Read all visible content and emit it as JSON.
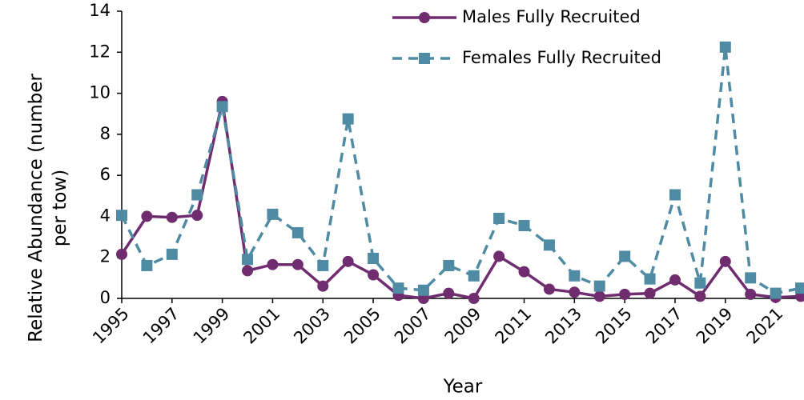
{
  "chart_data": {
    "type": "line",
    "x_label": "Year",
    "y_label": "Relative Abundance (number per tow)",
    "x": [
      1995,
      1996,
      1997,
      1998,
      1999,
      2000,
      2001,
      2002,
      2003,
      2004,
      2005,
      2006,
      2007,
      2008,
      2009,
      2010,
      2011,
      2012,
      2013,
      2014,
      2015,
      2016,
      2017,
      2018,
      2019,
      2020,
      2021,
      2022
    ],
    "series": [
      {
        "name": "Males Fully Recruited",
        "color": "#6f2c6e",
        "marker": "circle",
        "dashed": false,
        "values": [
          2.15,
          4.0,
          3.95,
          4.05,
          9.6,
          1.35,
          1.65,
          1.65,
          0.6,
          1.8,
          1.15,
          0.15,
          0.0,
          0.25,
          0.0,
          2.05,
          1.3,
          0.45,
          0.3,
          0.1,
          0.2,
          0.25,
          0.9,
          0.1,
          1.8,
          0.2,
          0.05,
          0.1
        ]
      },
      {
        "name": "Females Fully Recruited",
        "color": "#4f8ca3",
        "marker": "square",
        "dashed": true,
        "values": [
          4.05,
          1.6,
          2.15,
          5.05,
          9.35,
          1.9,
          4.1,
          3.2,
          1.6,
          8.75,
          1.95,
          0.5,
          0.4,
          1.6,
          1.1,
          3.9,
          3.55,
          2.6,
          1.1,
          0.6,
          2.05,
          0.95,
          5.05,
          0.75,
          12.25,
          1.0,
          0.25,
          0.5
        ]
      }
    ],
    "xlim": [
      1995,
      2022
    ],
    "xticks": [
      1995,
      1997,
      1999,
      2001,
      2003,
      2005,
      2007,
      2009,
      2011,
      2013,
      2015,
      2017,
      2019,
      2021
    ],
    "ylim": [
      0,
      14
    ],
    "yticks": [
      0,
      2,
      4,
      6,
      8,
      10,
      12,
      14
    ],
    "legend": "top-right"
  }
}
